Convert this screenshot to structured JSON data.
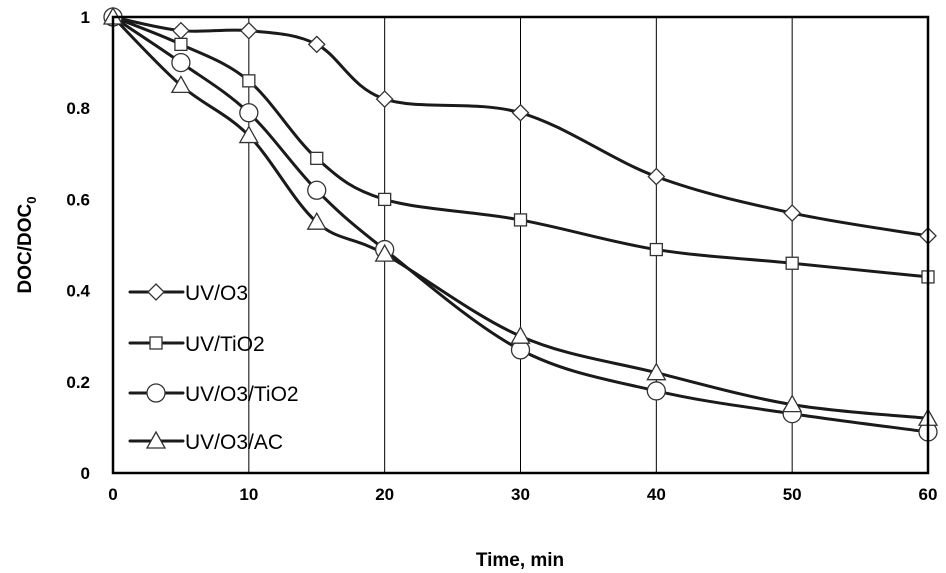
{
  "chart_data": {
    "type": "line",
    "xlabel": "Time, min",
    "ylabel": {
      "main": "DOC/DOC",
      "sub": "0"
    },
    "xlim": [
      0,
      60
    ],
    "ylim": [
      0,
      1
    ],
    "xticks": [
      0,
      10,
      20,
      30,
      40,
      50,
      60
    ],
    "yticks": [
      0,
      0.2,
      0.4,
      0.6,
      0.8,
      1
    ],
    "ytick_labels": [
      "0",
      "0.2",
      "0.4",
      "0.6",
      "0.8",
      "1"
    ],
    "grid": {
      "vertical": true,
      "horizontal": false
    },
    "legend": "bottom-left",
    "series": [
      {
        "name": "UV/O3",
        "marker": "diamond",
        "x": [
          0,
          5,
          10,
          15,
          20,
          30,
          40,
          50,
          60
        ],
        "y": [
          1,
          0.97,
          0.97,
          0.94,
          0.82,
          0.79,
          0.65,
          0.57,
          0.52
        ]
      },
      {
        "name": "UV/TiO2",
        "marker": "square",
        "x": [
          0,
          5,
          10,
          15,
          20,
          30,
          40,
          50,
          60
        ],
        "y": [
          1,
          0.94,
          0.86,
          0.69,
          0.6,
          0.555,
          0.49,
          0.46,
          0.43
        ]
      },
      {
        "name": "UV/O3/TiO2",
        "marker": "circle",
        "x": [
          0,
          5,
          10,
          15,
          20,
          30,
          40,
          50,
          60
        ],
        "y": [
          1,
          0.9,
          0.79,
          0.62,
          0.49,
          0.27,
          0.18,
          0.13,
          0.09
        ]
      },
      {
        "name": "UV/O3/AC",
        "marker": "triangle",
        "x": [
          0,
          5,
          10,
          15,
          20,
          30,
          40,
          50,
          60
        ],
        "y": [
          1,
          0.85,
          0.74,
          0.55,
          0.48,
          0.3,
          0.22,
          0.15,
          0.12
        ]
      }
    ]
  }
}
